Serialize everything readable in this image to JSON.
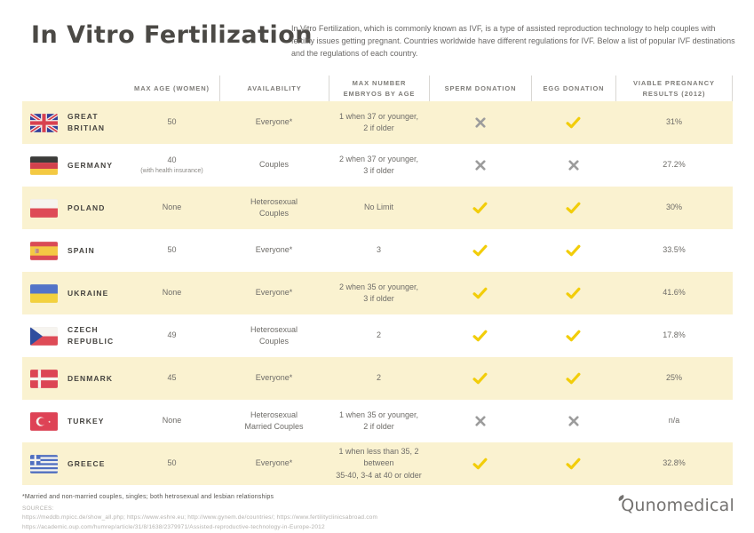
{
  "header": {
    "title": "In Vitro Fertilization",
    "description": "In Vitro Fertilization, which is commonly known as IVF, is a type of assisted reproduction technology to help couples with fertility issues getting pregnant. Countries worldwide have different regulations for IVF. Below a list of popular IVF destinations and the regulations of each country."
  },
  "colors": {
    "row_highlight": "#FAF2D0",
    "check": "#F2CD0A",
    "cross": "#9C9C9C"
  },
  "table": {
    "columns": [
      {
        "id": "country",
        "label": ""
      },
      {
        "id": "max-age",
        "label": "MAX AGE (WOMEN)"
      },
      {
        "id": "availability",
        "label": "AVAILABILITY"
      },
      {
        "id": "max-embryos",
        "label": "MAX NUMBER\nEMBRYOS BY AGE"
      },
      {
        "id": "sperm-donation",
        "label": "SPERM DONATION"
      },
      {
        "id": "egg-donation",
        "label": "EGG DONATION"
      },
      {
        "id": "results",
        "label": "VIABLE PREGNANCY\nRESULTS (2012)"
      }
    ],
    "rows": [
      {
        "flag": "great-britain",
        "country": "GREAT BRITIAN",
        "max_age": "50",
        "max_age_note": "",
        "availability": "Everyone*",
        "embryos": "1 when 37 or younger,\n2 if older",
        "sperm_donation": "no",
        "egg_donation": "yes",
        "results": "31%"
      },
      {
        "flag": "germany",
        "country": "GERMANY",
        "max_age": "40",
        "max_age_note": "(with health insurance)",
        "availability": "Couples",
        "embryos": "2 when 37 or younger,\n3 if older",
        "sperm_donation": "no",
        "egg_donation": "no",
        "results": "27.2%"
      },
      {
        "flag": "poland",
        "country": "POLAND",
        "max_age": "None",
        "max_age_note": "",
        "availability": "Heterosexual\nCouples",
        "embryos": "No Limit",
        "sperm_donation": "yes",
        "egg_donation": "yes",
        "results": "30%"
      },
      {
        "flag": "spain",
        "country": "SPAIN",
        "max_age": "50",
        "max_age_note": "",
        "availability": "Everyone*",
        "embryos": "3",
        "sperm_donation": "yes",
        "egg_donation": "yes",
        "results": "33.5%"
      },
      {
        "flag": "ukraine",
        "country": "UKRAINE",
        "max_age": "None",
        "max_age_note": "",
        "availability": "Everyone*",
        "embryos": "2 when 35 or younger,\n3 if older",
        "sperm_donation": "yes",
        "egg_donation": "yes",
        "results": "41.6%"
      },
      {
        "flag": "czech-republic",
        "country": "CZECH REPUBLIC",
        "max_age": "49",
        "max_age_note": "",
        "availability": "Heterosexual\nCouples",
        "embryos": "2",
        "sperm_donation": "yes",
        "egg_donation": "yes",
        "results": "17.8%"
      },
      {
        "flag": "denmark",
        "country": "DENMARK",
        "max_age": "45",
        "max_age_note": "",
        "availability": "Everyone*",
        "embryos": "2",
        "sperm_donation": "yes",
        "egg_donation": "yes",
        "results": "25%"
      },
      {
        "flag": "turkey",
        "country": "TURKEY",
        "max_age": "None",
        "max_age_note": "",
        "availability": "Heterosexual\nMarried Couples",
        "embryos": "1 when 35 or younger,\n2 if older",
        "sperm_donation": "no",
        "egg_donation": "no",
        "results": "n/a"
      },
      {
        "flag": "greece",
        "country": "GREECE",
        "max_age": "50",
        "max_age_note": "",
        "availability": "Everyone*",
        "embryos": "1 when less than 35, 2 between\n35-40, 3-4 at 40 or older",
        "sperm_donation": "yes",
        "egg_donation": "yes",
        "results": "32.8%"
      }
    ]
  },
  "footer": {
    "footnote": "*Married and non-married couples, singles; both hetrosexual and lesbian relationships",
    "sources_label": "SOURCES:",
    "sources": [
      "https://meddb.mpicc.de/show_all.php; https://www.eshre.eu; http://www.gynem.de/countries/; https://www.fertilityclinicsabroad.com",
      "https://academic.oup.com/humrep/article/31/8/1638/2379971/Assisted-reproductive-technology-in-Europe-2012"
    ],
    "logo_text": "Qunomedical"
  }
}
